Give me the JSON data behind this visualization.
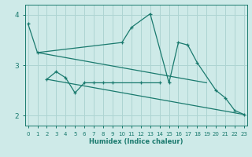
{
  "xlabel": "Humidex (Indice chaleur)",
  "bg_color": "#ceeae8",
  "grid_color": "#aed4d2",
  "line_color": "#1a7a6e",
  "x_values": [
    0,
    1,
    2,
    3,
    4,
    5,
    6,
    7,
    8,
    9,
    10,
    11,
    12,
    13,
    14,
    15,
    16,
    17,
    18,
    19,
    20,
    21,
    22,
    23
  ],
  "series1": [
    3.82,
    3.25,
    null,
    null,
    null,
    null,
    null,
    null,
    null,
    null,
    3.45,
    3.75,
    null,
    4.02,
    null,
    2.65,
    3.45,
    3.4,
    3.05,
    null,
    2.5,
    2.35,
    2.1,
    2.02
  ],
  "series2": [
    null,
    null,
    2.72,
    2.87,
    2.75,
    2.45,
    2.65,
    2.65,
    2.65,
    2.65,
    null,
    null,
    2.65,
    null,
    2.65,
    null,
    null,
    null,
    null,
    null,
    null,
    null,
    null,
    null
  ],
  "series3_x": [
    1,
    19
  ],
  "series3_y": [
    3.25,
    2.65
  ],
  "series4_x": [
    2,
    23
  ],
  "series4_y": [
    2.72,
    2.02
  ],
  "ylim": [
    1.8,
    4.2
  ],
  "xlim": [
    -0.3,
    23.3
  ],
  "yticks": [
    2,
    3,
    4
  ],
  "xticks": [
    0,
    1,
    2,
    3,
    4,
    5,
    6,
    7,
    8,
    9,
    10,
    11,
    12,
    13,
    14,
    15,
    16,
    17,
    18,
    19,
    20,
    21,
    22,
    23
  ]
}
